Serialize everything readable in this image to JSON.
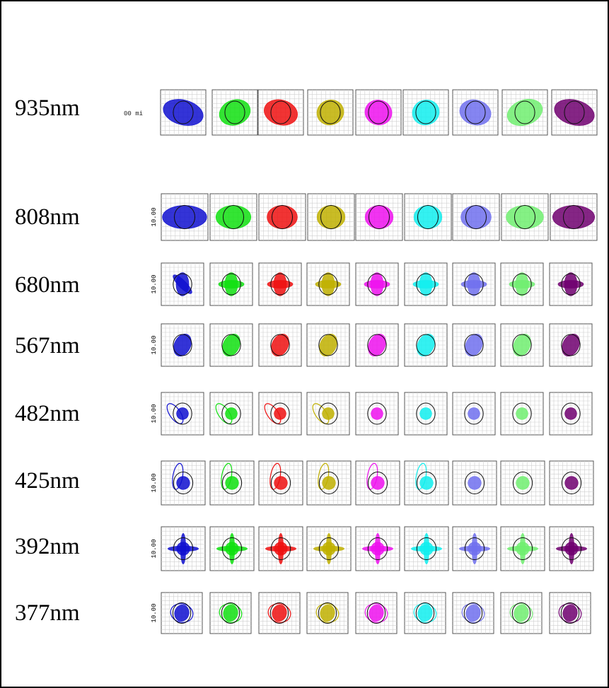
{
  "rows": [
    {
      "label": "935nm",
      "kind": "huge"
    },
    {
      "label": "808nm",
      "kind": "large"
    },
    {
      "label": "680nm",
      "kind": "star"
    },
    {
      "label": "567nm",
      "kind": "compact"
    },
    {
      "label": "482nm",
      "kind": "lobes"
    },
    {
      "label": "425nm",
      "kind": "flare"
    },
    {
      "label": "392nm",
      "kind": "cross"
    },
    {
      "label": "377nm",
      "kind": "rings"
    }
  ],
  "box_scale_label": "10.00",
  "first_row_scale_fragment": "00 mi",
  "field_colors": [
    "#1010d0",
    "#10e010",
    "#ee1010",
    "#c0b000",
    "#ee10ee",
    "#10eeee",
    "#7070ee",
    "#70ee70",
    "#700070"
  ]
}
